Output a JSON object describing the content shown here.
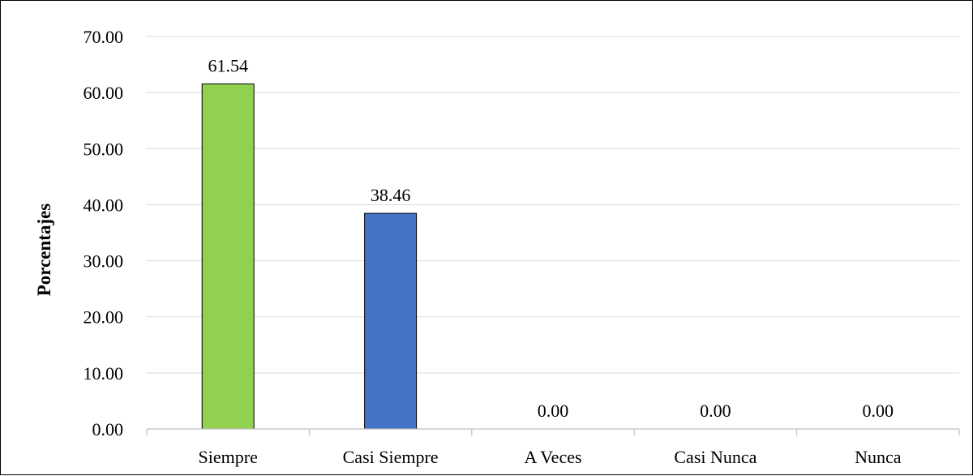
{
  "chart_data": {
    "type": "bar",
    "title": "",
    "xlabel": "",
    "ylabel": "Porcentajes",
    "categories": [
      "Siempre",
      "Casi Siempre",
      "A Veces",
      "Casi Nunca",
      "Nunca"
    ],
    "values": [
      61.54,
      38.46,
      0.0,
      0.0,
      0.0
    ],
    "value_labels": [
      "61.54",
      "38.46",
      "0.00",
      "0.00",
      "0.00"
    ],
    "bar_colors": [
      "#92D050",
      "#4472C4",
      "#4472C4",
      "#4472C4",
      "#4472C4"
    ],
    "ylim": [
      0,
      70
    ],
    "yticks": [
      0,
      10,
      20,
      30,
      40,
      50,
      60,
      70
    ],
    "ytick_labels": [
      "0.00",
      "10.00",
      "20.00",
      "30.00",
      "40.00",
      "50.00",
      "60.00",
      "70.00"
    ],
    "grid": true,
    "gridline_color": "#D9D9D9",
    "legend": "none"
  }
}
